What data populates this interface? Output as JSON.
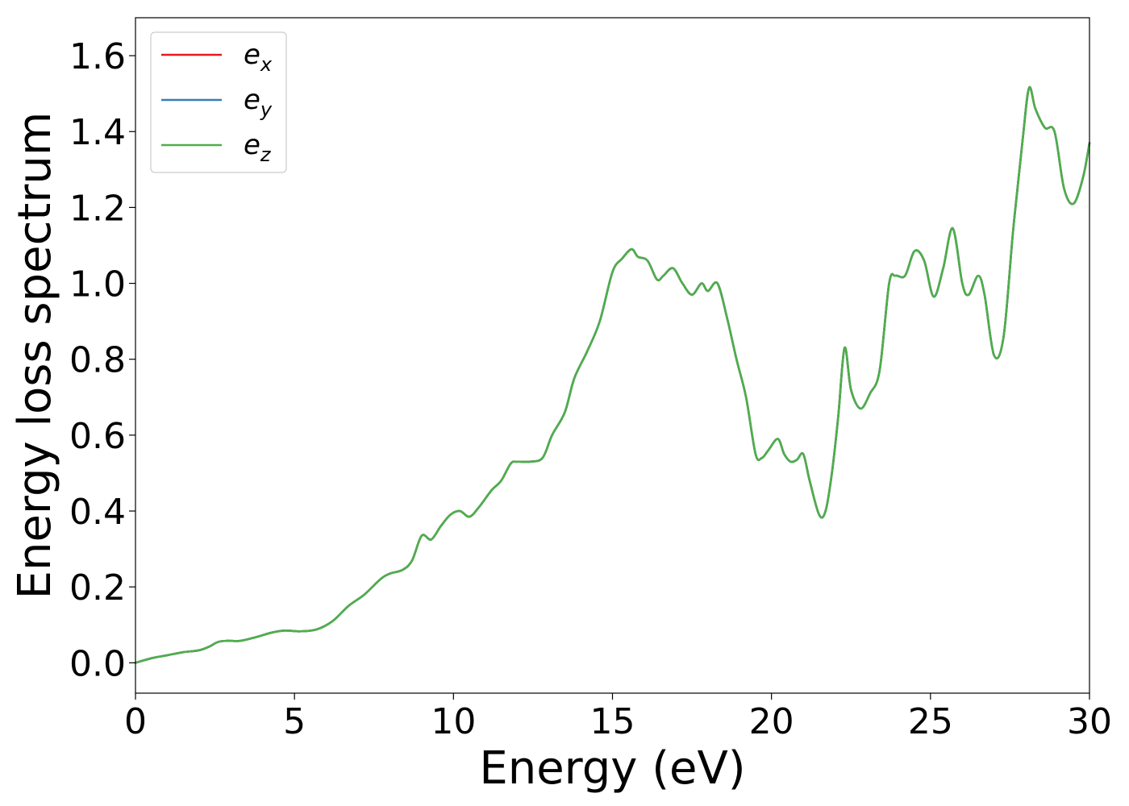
{
  "chart_data": {
    "type": "line",
    "title": "",
    "xlabel": "Energy (eV)",
    "ylabel": "Energy loss spectrum",
    "xlim": [
      0,
      30
    ],
    "ylim": [
      -0.08,
      1.7
    ],
    "xticks": [
      0,
      5,
      10,
      15,
      20,
      25,
      30
    ],
    "xtick_labels": [
      "0",
      "5",
      "10",
      "15",
      "20",
      "25",
      "30"
    ],
    "yticks": [
      0.0,
      0.2,
      0.4,
      0.6,
      0.8,
      1.0,
      1.2,
      1.4,
      1.6
    ],
    "ytick_labels": [
      "0.0",
      "0.2",
      "0.4",
      "0.6",
      "0.8",
      "1.0",
      "1.2",
      "1.4",
      "1.6"
    ],
    "grid": false,
    "legend_position": "top-left",
    "legend": [
      {
        "base": "e",
        "sub": "x",
        "color": "#e41a1c"
      },
      {
        "base": "e",
        "sub": "y",
        "color": "#377eb8"
      },
      {
        "base": "e",
        "sub": "z",
        "color": "#4daf4a"
      }
    ],
    "x": [
      0.0,
      0.5,
      1.0,
      1.5,
      2.0,
      2.3,
      2.6,
      2.9,
      3.3,
      3.8,
      4.3,
      4.7,
      5.2,
      5.7,
      6.2,
      6.7,
      7.2,
      7.7,
      8.0,
      8.4,
      8.7,
      9.0,
      9.3,
      9.6,
      9.9,
      10.2,
      10.5,
      10.8,
      11.2,
      11.5,
      11.8,
      12.0,
      12.4,
      12.8,
      13.1,
      13.5,
      13.8,
      14.2,
      14.6,
      15.0,
      15.3,
      15.6,
      15.8,
      16.1,
      16.4,
      16.6,
      16.9,
      17.2,
      17.5,
      17.8,
      18.0,
      18.3,
      18.6,
      18.9,
      19.2,
      19.5,
      19.7,
      19.9,
      20.2,
      20.4,
      20.6,
      20.8,
      21.0,
      21.2,
      21.5,
      21.7,
      21.9,
      22.1,
      22.3,
      22.5,
      22.8,
      23.1,
      23.4,
      23.7,
      23.9,
      24.2,
      24.5,
      24.8,
      25.1,
      25.4,
      25.7,
      26.0,
      26.2,
      26.5,
      26.7,
      27.0,
      27.3,
      27.6,
      27.9,
      28.1,
      28.3,
      28.6,
      28.9,
      29.2,
      29.5,
      29.8,
      30.0
    ],
    "series": [
      {
        "name": "e_x",
        "color": "#e41a1c",
        "values": [
          0.0,
          0.012,
          0.02,
          0.028,
          0.033,
          0.042,
          0.055,
          0.058,
          0.058,
          0.068,
          0.08,
          0.085,
          0.083,
          0.088,
          0.11,
          0.15,
          0.18,
          0.22,
          0.235,
          0.245,
          0.27,
          0.335,
          0.325,
          0.36,
          0.39,
          0.4,
          0.385,
          0.41,
          0.455,
          0.48,
          0.525,
          0.53,
          0.53,
          0.54,
          0.6,
          0.66,
          0.75,
          0.82,
          0.9,
          1.03,
          1.065,
          1.09,
          1.07,
          1.06,
          1.01,
          1.02,
          1.04,
          1.0,
          0.97,
          1.0,
          0.98,
          1.0,
          0.91,
          0.8,
          0.7,
          0.55,
          0.54,
          0.56,
          0.59,
          0.55,
          0.53,
          0.535,
          0.55,
          0.48,
          0.39,
          0.4,
          0.5,
          0.65,
          0.83,
          0.72,
          0.67,
          0.71,
          0.77,
          1.0,
          1.02,
          1.02,
          1.085,
          1.06,
          0.965,
          1.04,
          1.145,
          1.0,
          0.97,
          1.02,
          0.97,
          0.81,
          0.86,
          1.14,
          1.38,
          1.515,
          1.46,
          1.41,
          1.4,
          1.25,
          1.21,
          1.28,
          1.37
        ]
      },
      {
        "name": "e_y",
        "color": "#377eb8",
        "values": [
          0.0,
          0.012,
          0.02,
          0.028,
          0.033,
          0.042,
          0.055,
          0.058,
          0.058,
          0.068,
          0.08,
          0.085,
          0.083,
          0.088,
          0.11,
          0.15,
          0.18,
          0.22,
          0.235,
          0.245,
          0.27,
          0.335,
          0.325,
          0.36,
          0.39,
          0.4,
          0.385,
          0.41,
          0.455,
          0.48,
          0.525,
          0.53,
          0.53,
          0.54,
          0.6,
          0.66,
          0.75,
          0.82,
          0.9,
          1.03,
          1.065,
          1.09,
          1.07,
          1.06,
          1.01,
          1.02,
          1.04,
          1.0,
          0.97,
          1.0,
          0.98,
          1.0,
          0.91,
          0.8,
          0.7,
          0.55,
          0.54,
          0.56,
          0.59,
          0.55,
          0.53,
          0.535,
          0.55,
          0.48,
          0.39,
          0.4,
          0.5,
          0.65,
          0.83,
          0.72,
          0.67,
          0.71,
          0.77,
          1.0,
          1.02,
          1.02,
          1.085,
          1.06,
          0.965,
          1.04,
          1.145,
          1.0,
          0.97,
          1.02,
          0.97,
          0.81,
          0.86,
          1.14,
          1.38,
          1.515,
          1.46,
          1.41,
          1.4,
          1.25,
          1.21,
          1.28,
          1.37
        ]
      },
      {
        "name": "e_z",
        "color": "#4daf4a",
        "values": [
          0.0,
          0.012,
          0.02,
          0.028,
          0.033,
          0.042,
          0.055,
          0.058,
          0.058,
          0.068,
          0.08,
          0.085,
          0.083,
          0.088,
          0.11,
          0.15,
          0.18,
          0.22,
          0.235,
          0.245,
          0.27,
          0.335,
          0.325,
          0.36,
          0.39,
          0.4,
          0.385,
          0.41,
          0.455,
          0.48,
          0.525,
          0.53,
          0.53,
          0.54,
          0.6,
          0.66,
          0.75,
          0.82,
          0.9,
          1.03,
          1.065,
          1.09,
          1.07,
          1.06,
          1.01,
          1.02,
          1.04,
          1.0,
          0.97,
          1.0,
          0.98,
          1.0,
          0.91,
          0.8,
          0.7,
          0.55,
          0.54,
          0.56,
          0.59,
          0.55,
          0.53,
          0.535,
          0.55,
          0.48,
          0.39,
          0.4,
          0.5,
          0.65,
          0.83,
          0.72,
          0.67,
          0.71,
          0.77,
          1.0,
          1.02,
          1.02,
          1.085,
          1.06,
          0.965,
          1.04,
          1.145,
          1.0,
          0.97,
          1.02,
          0.97,
          0.81,
          0.86,
          1.14,
          1.38,
          1.515,
          1.46,
          1.41,
          1.4,
          1.25,
          1.21,
          1.28,
          1.37
        ]
      }
    ]
  }
}
